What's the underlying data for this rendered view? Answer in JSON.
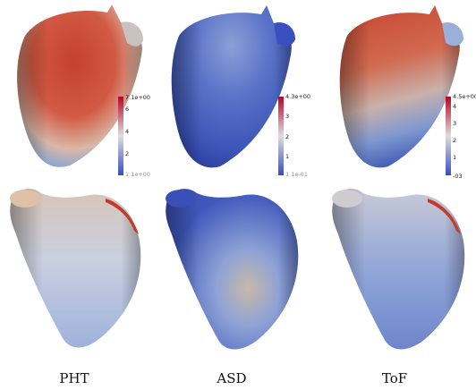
{
  "columns": [
    {
      "label": "PHT",
      "colorbar": {
        "max_label": "7.1e+00",
        "ticks": [
          "6",
          "4",
          "2"
        ],
        "min_label": "1.1e+00"
      }
    },
    {
      "label": "ASD",
      "colorbar": {
        "max_label": "4.3e+00",
        "ticks": [
          "3",
          "2",
          "1"
        ],
        "min_label": "1.1e-01"
      }
    },
    {
      "label": "ToF",
      "colorbar": {
        "max_label": "4.5e+00",
        "ticks": [
          "4",
          "3",
          "2",
          "1"
        ],
        "min_label": "-03"
      }
    }
  ],
  "colormap": {
    "low": "#3b4cc0",
    "mid": "#dddddd",
    "high": "#b40426"
  }
}
